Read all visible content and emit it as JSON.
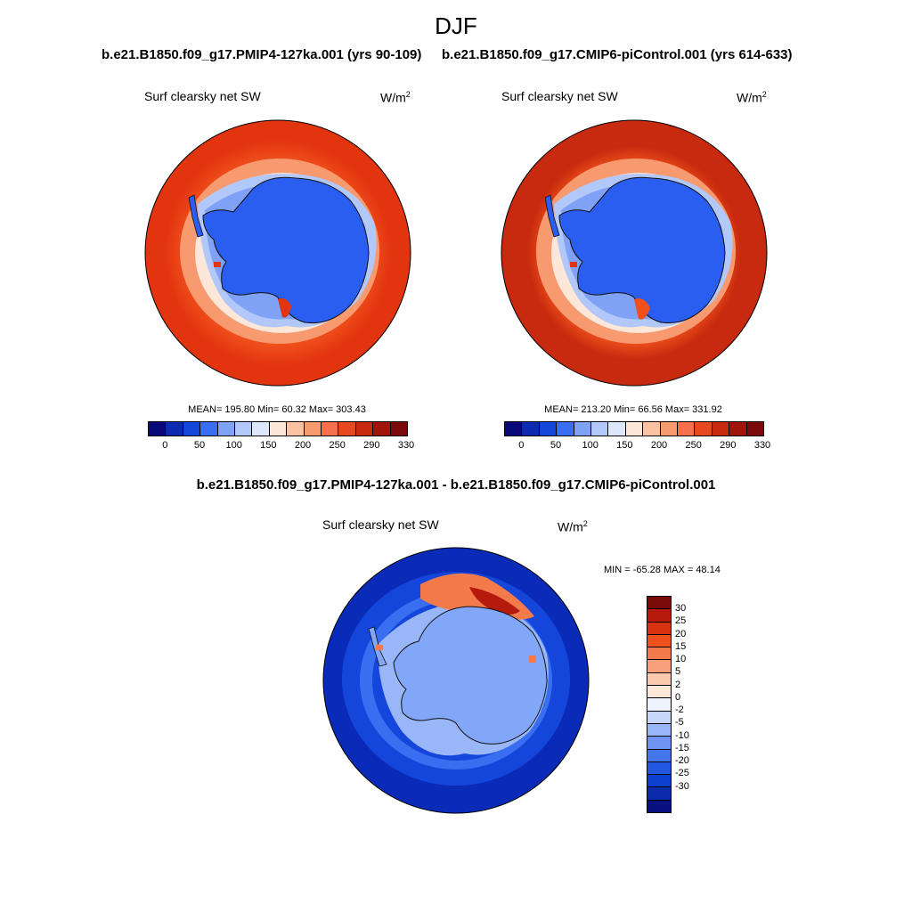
{
  "title": "DJF",
  "panel_left": {
    "case": "b.e21.B1850.f09_g17.PMIP4-127ka.001 (yrs 90-109)",
    "variable": "Surf clearsky net SW",
    "units_base": "W/m",
    "units_exp": "2",
    "stats_text": "MEAN= 195.80  Min=  60.32  Max= 303.43",
    "stats": {
      "mean": 195.8,
      "min": 60.32,
      "max": 303.43
    }
  },
  "panel_right": {
    "case": "b.e21.B1850.f09_g17.CMIP6-piControl.001 (yrs 614-633)",
    "variable": "Surf clearsky net SW",
    "units_base": "W/m",
    "units_exp": "2",
    "stats_text": "MEAN= 213.20  Min=  66.56  Max= 331.92",
    "stats": {
      "mean": 213.2,
      "min": 66.56,
      "max": 331.92
    }
  },
  "panel_diff": {
    "case": "b.e21.B1850.f09_g17.PMIP4-127ka.001 - b.e21.B1850.f09_g17.CMIP6-piControl.001",
    "variable": "Surf clearsky net SW",
    "units_base": "W/m",
    "units_exp": "2",
    "stats_text": "MIN = -65.28 MAX =  48.14",
    "stats": {
      "min": -65.28,
      "max": 48.14
    }
  },
  "colorbar_abs": {
    "colors": [
      "#0a0a7a",
      "#0b2bb0",
      "#1546dc",
      "#3a6ef0",
      "#7fa1f6",
      "#b3c8fa",
      "#dde8fd",
      "#fde7d8",
      "#fbc2a2",
      "#f79a70",
      "#f4704a",
      "#e8481f",
      "#c72a0e",
      "#a0140a",
      "#7a0a0a"
    ],
    "tick_labels": [
      "0",
      "50",
      "100",
      "150",
      "200",
      "250",
      "290",
      "330"
    ]
  },
  "colorbar_diff": {
    "colors": [
      "#7a0a0a",
      "#b51a0c",
      "#d83311",
      "#f0511c",
      "#f47a4b",
      "#f7a07a",
      "#fbc9ae",
      "#fde7d8",
      "#eef3fd",
      "#c6d7fb",
      "#98b6f8",
      "#6f95f3",
      "#4676ee",
      "#2358e3",
      "#0f3fcf",
      "#0a2bac",
      "#06107e"
    ],
    "tick_labels": [
      "30",
      "25",
      "20",
      "15",
      "10",
      "5",
      "2",
      "0",
      "-2",
      "-5",
      "-10",
      "-15",
      "-20",
      "-25",
      "-30"
    ]
  },
  "map_colors": {
    "ocean_outer": "#e2340f",
    "ocean_outer_dark": "#c72a0e",
    "ocean_mid": "#f0511c",
    "ocean_warm": "#f79a70",
    "ocean_pale": "#fde7d8",
    "ice_edge": "#b3c8fa",
    "ice_mid": "#7fa1f6",
    "continent": "#2a5ef0",
    "diff_ocean": "#0a2bb8",
    "diff_ocean2": "#1546dc",
    "diff_ring": "#3a6ef0",
    "diff_light": "#98b6f8",
    "diff_continent": "#82a6f8",
    "diff_warm": "#f47a4b",
    "diff_hot": "#b51a0c"
  }
}
